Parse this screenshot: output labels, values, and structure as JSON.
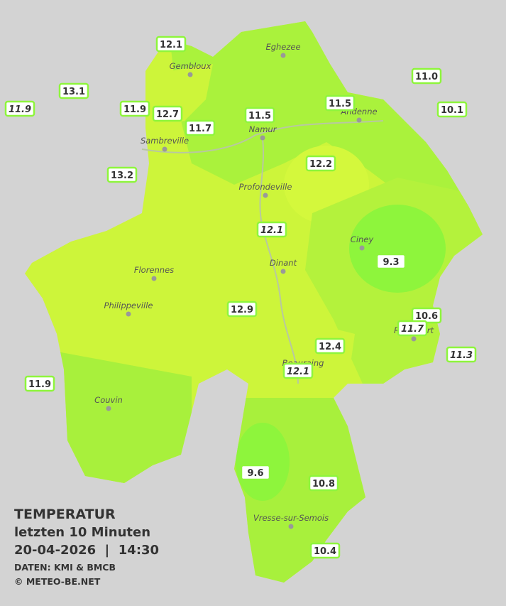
{
  "map": {
    "caption": {
      "title": "TEMPERATUR",
      "period": "letzten 10 Minuten",
      "datetime": "20-04-2026  |  14:30",
      "source": "DATEN: KMI & BMCB",
      "copyright": "© METEO-BE.NET"
    },
    "cities": [
      "Eghezee",
      "Gembloux",
      "Andenne",
      "Namur",
      "Sambreville",
      "Profondeville",
      "Ciney",
      "Dinant",
      "Florennes",
      "Philippeville",
      "Rochefort",
      "Beauraing",
      "Couvin",
      "Vresse-sur-Semois"
    ],
    "stations": [
      "12.1",
      "13.1",
      "11.9",
      "11.9",
      "12.7",
      "11.7",
      "11.5",
      "11.5",
      "11.0",
      "10.1",
      "13.2",
      "12.2",
      "12.1",
      "9.3",
      "12.9",
      "10.6",
      "11.7",
      "11.3",
      "12.4",
      "12.1",
      "11.9",
      "9.6",
      "10.8",
      "10.4"
    ]
  }
}
